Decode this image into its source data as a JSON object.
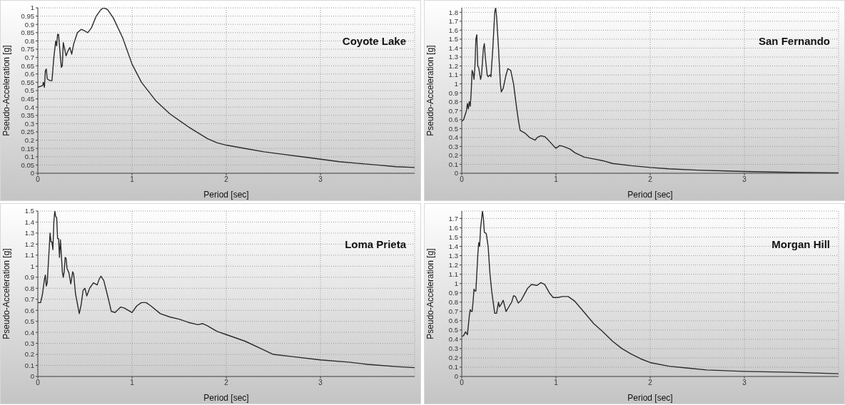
{
  "chart_data": [
    {
      "type": "line",
      "title": "Coyote Lake",
      "xlabel": "Period [sec]",
      "ylabel": "Pseudo-Acceleration [g]",
      "color": "#2a2a2a",
      "grid": true,
      "marker": "none",
      "xlim": [
        0,
        4
      ],
      "xticks": [
        0,
        1,
        2,
        3
      ],
      "ylim": [
        0,
        1
      ],
      "yticks": [
        0,
        0.05,
        0.1,
        0.15,
        0.2,
        0.25,
        0.3,
        0.35,
        0.4,
        0.45,
        0.5,
        0.55,
        0.6,
        0.65,
        0.7,
        0.75,
        0.8,
        0.85,
        0.9,
        0.95,
        1
      ],
      "x": [
        0,
        0.05,
        0.06,
        0.07,
        0.08,
        0.09,
        0.1,
        0.13,
        0.15,
        0.17,
        0.19,
        0.2,
        0.21,
        0.22,
        0.24,
        0.25,
        0.26,
        0.27,
        0.3,
        0.32,
        0.34,
        0.36,
        0.38,
        0.42,
        0.46,
        0.5,
        0.53,
        0.57,
        0.62,
        0.67,
        0.7,
        0.74,
        0.8,
        0.9,
        1.0,
        1.1,
        1.25,
        1.4,
        1.6,
        1.8,
        1.9,
        2.0,
        2.2,
        2.4,
        2.6,
        2.8,
        3.0,
        3.2,
        3.4,
        3.6,
        3.8,
        4.0
      ],
      "values": [
        0.52,
        0.53,
        0.55,
        0.52,
        0.62,
        0.63,
        0.57,
        0.56,
        0.56,
        0.7,
        0.8,
        0.77,
        0.84,
        0.84,
        0.7,
        0.64,
        0.65,
        0.79,
        0.71,
        0.74,
        0.76,
        0.72,
        0.78,
        0.85,
        0.87,
        0.86,
        0.85,
        0.88,
        0.95,
        0.99,
        1.0,
        0.99,
        0.94,
        0.82,
        0.66,
        0.55,
        0.44,
        0.36,
        0.28,
        0.21,
        0.185,
        0.17,
        0.15,
        0.13,
        0.115,
        0.1,
        0.085,
        0.07,
        0.06,
        0.05,
        0.04,
        0.035
      ]
    },
    {
      "type": "line",
      "title": "San Fernando",
      "xlabel": "Period [sec]",
      "ylabel": "Pseudo-Acceleration [g]",
      "color": "#2a2a2a",
      "grid": true,
      "marker": "none",
      "xlim": [
        0,
        4
      ],
      "xticks": [
        0,
        1,
        2,
        3
      ],
      "ylim": [
        0,
        1.85
      ],
      "yticks": [
        0,
        0.1,
        0.2,
        0.3,
        0.4,
        0.5,
        0.6,
        0.7,
        0.8,
        0.9,
        1,
        1.1,
        1.2,
        1.3,
        1.4,
        1.5,
        1.6,
        1.7,
        1.8
      ],
      "x": [
        0,
        0.02,
        0.05,
        0.06,
        0.07,
        0.08,
        0.09,
        0.1,
        0.11,
        0.12,
        0.13,
        0.14,
        0.15,
        0.16,
        0.17,
        0.18,
        0.2,
        0.21,
        0.23,
        0.24,
        0.25,
        0.27,
        0.28,
        0.3,
        0.31,
        0.33,
        0.35,
        0.36,
        0.37,
        0.39,
        0.41,
        0.42,
        0.44,
        0.47,
        0.49,
        0.52,
        0.55,
        0.58,
        0.6,
        0.62,
        0.67,
        0.72,
        0.76,
        0.78,
        0.8,
        0.84,
        0.88,
        0.92,
        0.98,
        1.0,
        1.04,
        1.08,
        1.15,
        1.2,
        1.3,
        1.4,
        1.5,
        1.6,
        1.8,
        2.0,
        2.2,
        2.5,
        3.0,
        3.5,
        4.0
      ],
      "values": [
        0.58,
        0.6,
        0.7,
        0.78,
        0.72,
        0.8,
        0.75,
        0.9,
        1.15,
        1.12,
        1.05,
        1.2,
        1.5,
        1.55,
        1.2,
        1.18,
        1.05,
        1.1,
        1.4,
        1.45,
        1.3,
        1.1,
        1.08,
        1.1,
        1.08,
        1.4,
        1.8,
        1.85,
        1.75,
        1.4,
        1.0,
        0.91,
        0.95,
        1.1,
        1.17,
        1.15,
        1.0,
        0.75,
        0.6,
        0.48,
        0.45,
        0.4,
        0.38,
        0.37,
        0.4,
        0.42,
        0.41,
        0.37,
        0.3,
        0.28,
        0.31,
        0.3,
        0.27,
        0.23,
        0.18,
        0.16,
        0.14,
        0.11,
        0.085,
        0.065,
        0.05,
        0.035,
        0.02,
        0.01,
        0.005
      ]
    },
    {
      "type": "line",
      "title": "Loma Prieta",
      "xlabel": "Period [sec]",
      "ylabel": "Pseudo-Acceleration [g]",
      "color": "#2a2a2a",
      "grid": true,
      "marker": "none",
      "xlim": [
        0,
        4
      ],
      "xticks": [
        0,
        1,
        2,
        3
      ],
      "ylim": [
        0,
        1.5
      ],
      "yticks": [
        0,
        0.1,
        0.2,
        0.3,
        0.4,
        0.5,
        0.6,
        0.7,
        0.8,
        0.9,
        1,
        1.1,
        1.2,
        1.3,
        1.4,
        1.5
      ],
      "x": [
        0,
        0.03,
        0.05,
        0.07,
        0.08,
        0.09,
        0.1,
        0.11,
        0.12,
        0.13,
        0.14,
        0.15,
        0.16,
        0.17,
        0.18,
        0.19,
        0.2,
        0.21,
        0.22,
        0.23,
        0.24,
        0.25,
        0.26,
        0.27,
        0.28,
        0.29,
        0.3,
        0.31,
        0.33,
        0.35,
        0.37,
        0.38,
        0.4,
        0.44,
        0.46,
        0.48,
        0.5,
        0.52,
        0.55,
        0.59,
        0.63,
        0.65,
        0.67,
        0.7,
        0.75,
        0.78,
        0.82,
        0.88,
        0.92,
        1.0,
        1.05,
        1.1,
        1.15,
        1.2,
        1.3,
        1.4,
        1.5,
        1.6,
        1.7,
        1.75,
        1.8,
        1.9,
        2.0,
        2.2,
        2.4,
        2.5,
        2.7,
        3.0,
        3.3,
        3.5,
        3.8,
        4.0
      ],
      "values": [
        0.67,
        0.67,
        0.75,
        0.88,
        0.92,
        0.82,
        0.85,
        1.0,
        1.15,
        1.3,
        1.22,
        1.22,
        1.15,
        1.4,
        1.5,
        1.45,
        1.44,
        1.25,
        1.25,
        1.08,
        1.24,
        1.1,
        0.95,
        0.9,
        0.95,
        1.08,
        1.07,
        0.98,
        0.94,
        0.84,
        0.95,
        0.93,
        0.75,
        0.57,
        0.65,
        0.78,
        0.8,
        0.73,
        0.8,
        0.85,
        0.83,
        0.88,
        0.91,
        0.87,
        0.7,
        0.59,
        0.58,
        0.63,
        0.62,
        0.58,
        0.64,
        0.67,
        0.67,
        0.64,
        0.57,
        0.54,
        0.52,
        0.49,
        0.47,
        0.48,
        0.46,
        0.41,
        0.38,
        0.32,
        0.24,
        0.2,
        0.18,
        0.15,
        0.13,
        0.11,
        0.09,
        0.08
      ]
    },
    {
      "type": "line",
      "title": "Morgan Hill",
      "xlabel": "Period [sec]",
      "ylabel": "Pseudo-Acceleration [g]",
      "color": "#2a2a2a",
      "grid": true,
      "marker": "none",
      "xlim": [
        0,
        4
      ],
      "xticks": [
        0,
        1,
        2,
        3
      ],
      "ylim": [
        0,
        1.78
      ],
      "yticks": [
        0,
        0.1,
        0.2,
        0.3,
        0.4,
        0.5,
        0.6,
        0.7,
        0.8,
        0.9,
        1,
        1.1,
        1.2,
        1.3,
        1.4,
        1.5,
        1.6,
        1.7
      ],
      "x": [
        0,
        0.02,
        0.04,
        0.06,
        0.08,
        0.09,
        0.1,
        0.11,
        0.12,
        0.13,
        0.14,
        0.15,
        0.17,
        0.18,
        0.19,
        0.2,
        0.22,
        0.23,
        0.24,
        0.26,
        0.28,
        0.3,
        0.32,
        0.35,
        0.37,
        0.39,
        0.4,
        0.42,
        0.44,
        0.47,
        0.5,
        0.53,
        0.55,
        0.57,
        0.6,
        0.63,
        0.7,
        0.74,
        0.8,
        0.84,
        0.88,
        0.93,
        0.97,
        1.02,
        1.07,
        1.13,
        1.2,
        1.3,
        1.4,
        1.5,
        1.6,
        1.7,
        1.8,
        1.9,
        2.0,
        2.2,
        2.4,
        2.6,
        3.0,
        3.5,
        4.0
      ],
      "values": [
        0.43,
        0.44,
        0.48,
        0.45,
        0.65,
        0.72,
        0.7,
        0.7,
        0.8,
        0.94,
        0.92,
        0.92,
        1.3,
        1.44,
        1.4,
        1.6,
        1.78,
        1.7,
        1.55,
        1.54,
        1.4,
        1.1,
        0.9,
        0.68,
        0.68,
        0.8,
        0.75,
        0.78,
        0.82,
        0.7,
        0.75,
        0.8,
        0.87,
        0.86,
        0.79,
        0.82,
        0.95,
        0.99,
        0.98,
        1.01,
        0.99,
        0.9,
        0.85,
        0.85,
        0.86,
        0.86,
        0.81,
        0.69,
        0.57,
        0.48,
        0.38,
        0.3,
        0.24,
        0.19,
        0.15,
        0.11,
        0.09,
        0.07,
        0.055,
        0.045,
        0.03
      ]
    }
  ]
}
